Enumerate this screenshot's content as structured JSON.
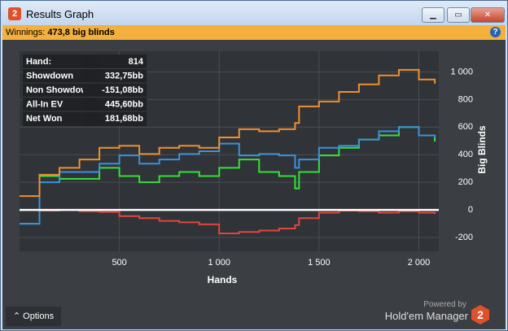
{
  "window": {
    "title": "Results Graph",
    "winnings_label": "Winnings:",
    "winnings_value": "473,8 big blinds",
    "options": "Options",
    "powered_by": "Powered by",
    "brand": "Hold'em Manager",
    "info": [
      [
        "Hand:",
        "814"
      ],
      [
        "Showdown",
        "332,75bb"
      ],
      [
        "Non Showdown",
        "-151,08bb"
      ],
      [
        "All-In EV",
        "445,60bb"
      ],
      [
        "Net Won",
        "181,68bb"
      ]
    ]
  },
  "chart_data": {
    "type": "line",
    "x_label": "Hands",
    "y_label": "Big Blinds",
    "x": [
      0,
      100,
      200,
      300,
      400,
      500,
      600,
      700,
      800,
      900,
      1000,
      1100,
      1200,
      1300,
      1380,
      1400,
      1500,
      1600,
      1700,
      1800,
      1900,
      2000,
      2080
    ],
    "xlim": [
      0,
      2100
    ],
    "xticks": [
      {
        "value": 500,
        "label": "500"
      },
      {
        "value": 1000,
        "label": "1 000"
      },
      {
        "value": 1500,
        "label": "1 500"
      },
      {
        "value": 2000,
        "label": "2 000"
      }
    ],
    "ylim": [
      -300,
      1150
    ],
    "yticks": [
      -200,
      0,
      200,
      400,
      600,
      800,
      {
        "value": 1000,
        "label": "1 000"
      }
    ],
    "grid": true,
    "series": [
      {
        "name": "Net Won",
        "color": "#35e03a",
        "values": [
          -100,
          245,
          225,
          225,
          305,
          245,
          200,
          245,
          275,
          245,
          305,
          365,
          275,
          245,
          155,
          275,
          395,
          450,
          510,
          540,
          600,
          540,
          495
        ]
      },
      {
        "name": "Non Showdown",
        "color": "#e0463f",
        "values": [
          0,
          -5,
          0,
          -10,
          -15,
          -45,
          -60,
          -80,
          -90,
          -105,
          -170,
          -160,
          -150,
          -135,
          -110,
          -60,
          -20,
          -5,
          -10,
          -20,
          -10,
          -20,
          -30
        ]
      },
      {
        "name": "Showdown",
        "color": "#3b91dc",
        "values": [
          -100,
          200,
          275,
          275,
          335,
          395,
          335,
          365,
          405,
          425,
          480,
          395,
          405,
          395,
          305,
          365,
          450,
          465,
          510,
          570,
          600,
          540,
          525
        ]
      },
      {
        "name": "All-In EV",
        "color": "#f0902e",
        "values": [
          100,
          255,
          305,
          365,
          450,
          465,
          405,
          450,
          465,
          450,
          525,
          585,
          570,
          585,
          630,
          750,
          785,
          855,
          910,
          975,
          1015,
          945,
          915
        ]
      }
    ]
  }
}
